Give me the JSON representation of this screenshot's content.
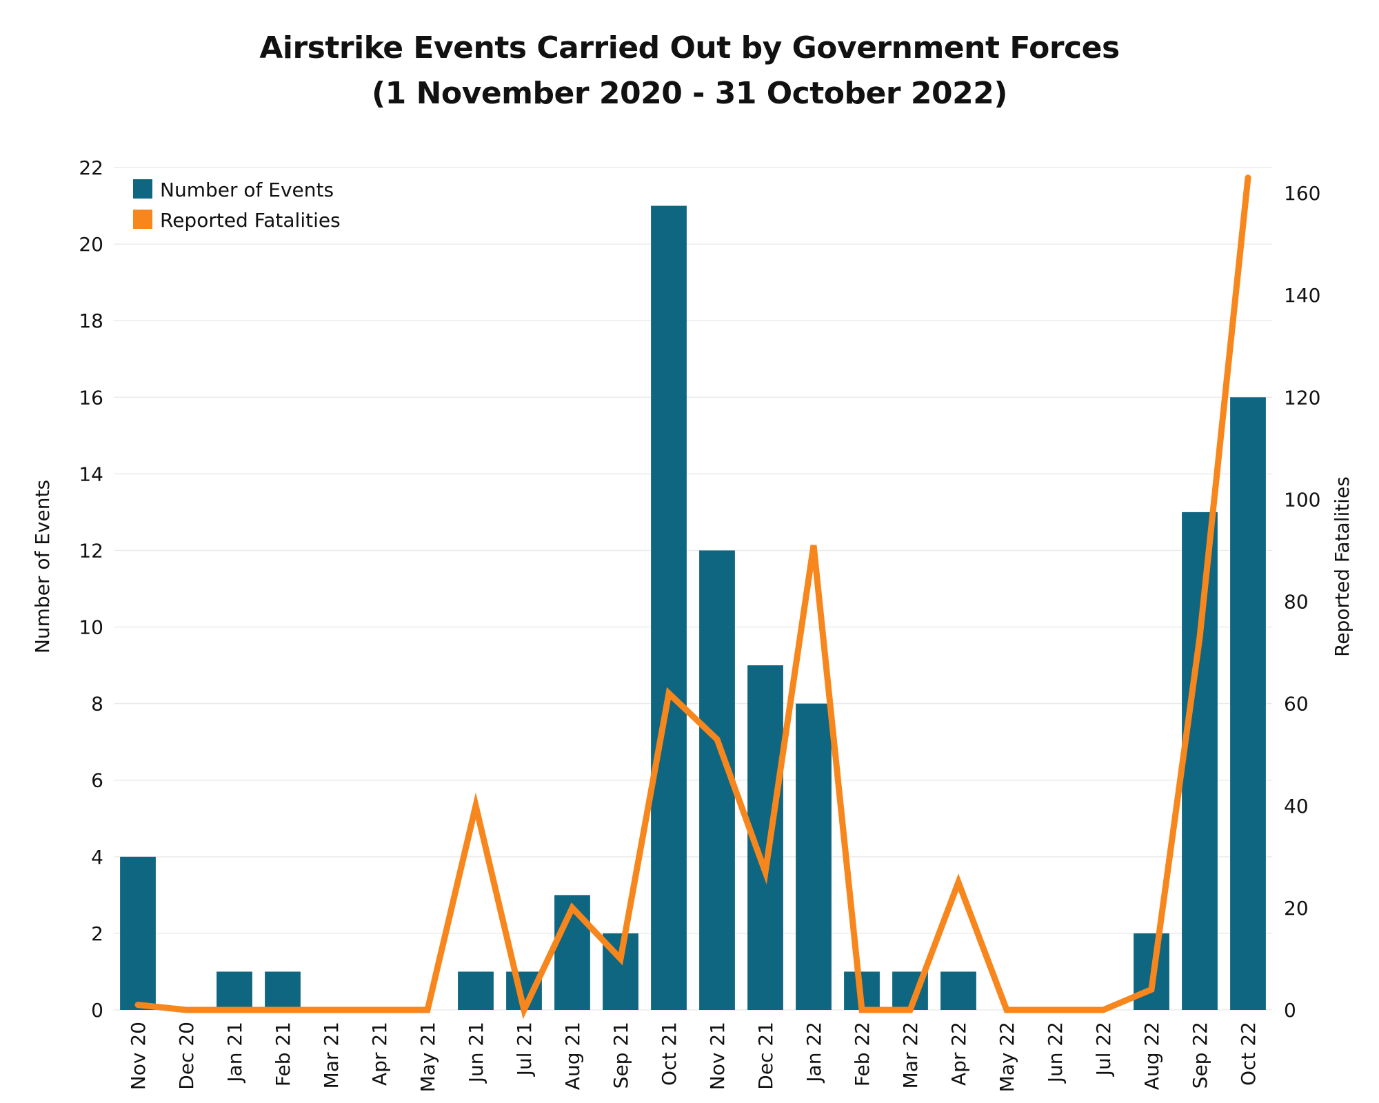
{
  "title_line1": "Airstrike Events Carried Out by Government Forces",
  "title_line2": "(1 November 2020 - 31 October 2022)",
  "colors": {
    "bars": "#0f6680",
    "line": "#f7861c",
    "grid": "#ebebeb",
    "text": "#111111"
  },
  "chart_data": {
    "type": "bar",
    "categories": [
      "Nov 20",
      "Dec 20",
      "Jan 21",
      "Feb 21",
      "Mar 21",
      "Apr 21",
      "May 21",
      "Jun 21",
      "Jul 21",
      "Aug 21",
      "Sep 21",
      "Oct 21",
      "Nov 21",
      "Dec 21",
      "Jan 22",
      "Feb 22",
      "Mar 22",
      "Apr 22",
      "May 22",
      "Jun 22",
      "Jul 22",
      "Aug 22",
      "Sep 22",
      "Oct 22"
    ],
    "series": [
      {
        "name": "Number of Events",
        "type": "bar",
        "axis": "left",
        "values": [
          4,
          0,
          1,
          1,
          0,
          0,
          0,
          1,
          1,
          3,
          2,
          21,
          12,
          9,
          8,
          1,
          1,
          1,
          0,
          0,
          0,
          2,
          13,
          16
        ]
      },
      {
        "name": "Reported Fatalities",
        "type": "line",
        "axis": "right",
        "values": [
          1,
          0,
          0,
          0,
          0,
          0,
          0,
          40,
          0,
          20,
          10,
          62,
          53,
          27,
          91,
          0,
          0,
          25,
          0,
          0,
          0,
          4,
          73,
          163
        ]
      }
    ],
    "ylabel": "Number of Events",
    "y2label": "Reported Fatalities",
    "ylim": [
      0,
      22
    ],
    "y2lim": [
      0,
      165
    ],
    "yticks": [
      0,
      2,
      4,
      6,
      8,
      10,
      12,
      14,
      16,
      18,
      20,
      22
    ],
    "y2ticks": [
      0,
      20,
      40,
      60,
      80,
      100,
      120,
      140,
      160
    ],
    "grid": true,
    "legend_position": "top-left"
  }
}
